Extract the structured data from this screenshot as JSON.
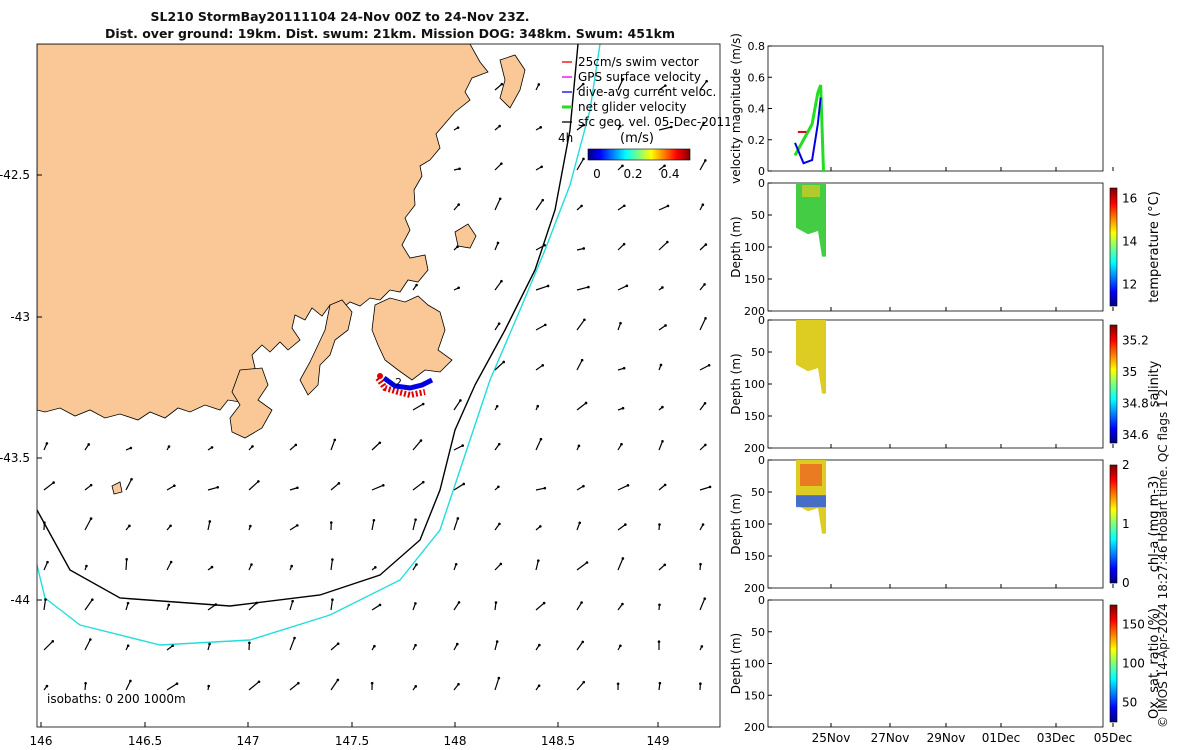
{
  "title": {
    "line1": "SL210 StormBay20111104 24-Nov 00Z to 24-Nov 23Z.",
    "line2": "Dist. over ground: 19km. Dist. swum: 21km. Mission DOG: 348km. Swum: 451km"
  },
  "map": {
    "xticks": [
      "146",
      "146.5",
      "147",
      "147.5",
      "148",
      "148.5",
      "149"
    ],
    "yticks": [
      "-42.5",
      "-43",
      "-43.5",
      "-44"
    ],
    "legend": [
      {
        "label": "25cm/s swim vector",
        "color": "#e00000"
      },
      {
        "label": "GPS surface velocity",
        "color": "#e000e0"
      },
      {
        "label": "dive-avg current veloc.",
        "color": "#0000e0"
      },
      {
        "label": "net glider velocity",
        "color": "#22dd22"
      },
      {
        "label": "sfc geo. vel. 05-Dec-2011",
        "color": "#000000"
      }
    ],
    "colorbar_label": "(m/s)",
    "colorbar_ticks": [
      "0",
      "0.2",
      "0.4"
    ],
    "marker_4h": "4h",
    "marker_2": "2",
    "isobaths_label": "isobaths: 0   200  1000m",
    "colors": {
      "land": "#f9c896",
      "isobath200": "#000000",
      "isobath1000": "#22dddd"
    }
  },
  "chart_data": [
    {
      "type": "line",
      "title": "",
      "xlabel": "",
      "ylabel": "velocity magnitude (m/s)",
      "ylim": [
        0,
        0.8
      ],
      "yticks": [
        "0",
        "0.2",
        "0.4",
        "0.6",
        "0.8"
      ],
      "series": [
        {
          "name": "net glider velocity",
          "color": "#22dd22",
          "x": [
            24.0,
            24.3,
            24.6,
            24.8,
            24.9,
            25.0
          ],
          "values": [
            0.1,
            0.2,
            0.3,
            0.5,
            0.55,
            0.0
          ]
        },
        {
          "name": "dive-avg current veloc.",
          "color": "#0000e0",
          "x": [
            24.0,
            24.3,
            24.6,
            24.8,
            24.9
          ],
          "values": [
            0.18,
            0.05,
            0.07,
            0.3,
            0.47
          ]
        },
        {
          "name": "25cm/s swim vector",
          "color": "#e00000",
          "x": [
            24.1,
            24.4
          ],
          "values": [
            0.25,
            0.25
          ]
        }
      ]
    },
    {
      "type": "heatmap",
      "ylabel": "Depth (m)",
      "clabel": "temperature (°C)",
      "ylim": [
        0,
        200
      ],
      "yticks": [
        "0",
        "50",
        "100",
        "150",
        "200"
      ],
      "cticks": [
        "12",
        "14",
        "16"
      ],
      "crange": [
        11,
        16.5
      ],
      "profile_max_depth_m": [
        70,
        80,
        75,
        115
      ],
      "approx_value": 13.2
    },
    {
      "type": "heatmap",
      "ylabel": "Depth (m)",
      "clabel": "salinity",
      "ylim": [
        0,
        200
      ],
      "yticks": [
        "0",
        "50",
        "100",
        "150",
        "200"
      ],
      "cticks": [
        "34.6",
        "34.8",
        "35",
        "35.2"
      ],
      "crange": [
        34.55,
        35.3
      ],
      "profile_max_depth_m": [
        70,
        80,
        75,
        115
      ],
      "approx_value": 35.05
    },
    {
      "type": "heatmap",
      "ylabel": "Depth (m)",
      "clabel": "chl-a (mg m-3)",
      "ylim": [
        0,
        200
      ],
      "yticks": [
        "0",
        "50",
        "100",
        "150",
        "200"
      ],
      "cticks": [
        "0",
        "1",
        "2"
      ],
      "crange": [
        0,
        2
      ],
      "profile_max_depth_m": [
        70,
        80,
        75,
        115
      ],
      "approx_value": 1.2
    },
    {
      "type": "heatmap",
      "ylabel": "Depth (m)",
      "clabel": "Ox. sat. ratio (%)",
      "ylim": [
        0,
        200
      ],
      "yticks": [
        "0",
        "50",
        "100",
        "150",
        "200"
      ],
      "cticks": [
        "50",
        "100",
        "150"
      ],
      "crange": [
        25,
        175
      ],
      "profile_max_depth_m": [],
      "approx_value": null
    }
  ],
  "time_axis": {
    "labels": [
      "25Nov",
      "27Nov",
      "29Nov",
      "01Dec",
      "03Dec",
      "05Dec"
    ]
  },
  "footer": "© IMOS 14-Apr-2024 18:27:46 Hobart time. QC flags 1  2"
}
